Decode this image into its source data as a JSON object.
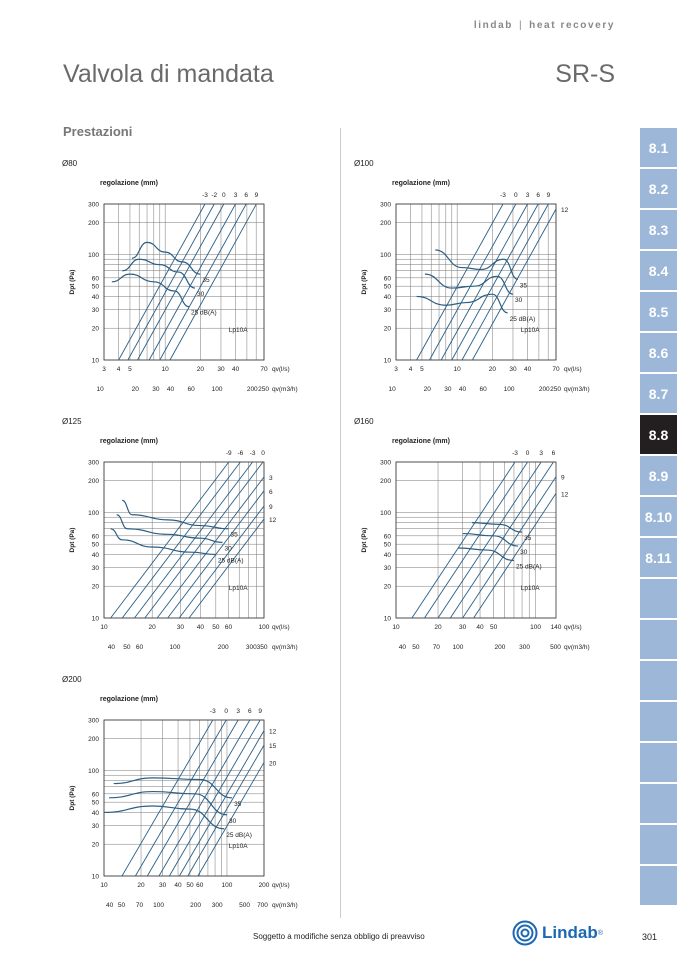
{
  "header": {
    "brand": "lindab",
    "separator": "|",
    "series": "heat recovery"
  },
  "page_title": "Valvola di mandata",
  "model": "SR-S",
  "section_title": "Prestazioni",
  "tabs": [
    "8.1",
    "8.2",
    "8.3",
    "8.4",
    "8.5",
    "8.6",
    "8.7",
    "8.8",
    "8.9",
    "8.10",
    "8.11",
    "",
    "",
    "",
    "",
    "",
    "",
    "",
    ""
  ],
  "active_tab": "8.8",
  "footer": "Soggetto a modifiche senza obbligo di preavviso",
  "logo": "Lindab",
  "logo_mark": "®",
  "page_number": "301",
  "colors": {
    "curve": "#2b5f86",
    "tab": "#9db7d9",
    "tab_active": "#231f20",
    "brand": "#1d68b3"
  },
  "chart_data": [
    {
      "type": "line",
      "title": "Ø80",
      "diameter": "Ø80",
      "regulation_label": "regolazione (mm)",
      "regulation_values": [
        "-3",
        "-2",
        "0",
        "3",
        "6",
        "9"
      ],
      "ylabel": "Dpt (Pa)",
      "xlabel_ls": "qv(l/s)",
      "xlabel_m3h": "qv(m3/h)",
      "ylim": [
        10,
        300
      ],
      "xlim": [
        3,
        70
      ],
      "yticks": [
        10,
        20,
        30,
        40,
        50,
        60,
        100,
        200,
        300
      ],
      "xticks_ls": [
        3,
        4,
        5,
        10,
        20,
        30,
        40,
        70
      ],
      "xticks_m3h": [
        10,
        20,
        30,
        40,
        60,
        100,
        200,
        250
      ],
      "reg_lines_q10": [
        4,
        4.8,
        5.8,
        7.3,
        9,
        11
      ],
      "sound": [
        {
          "label": "35",
          "points": [
            [
              5.2,
              92
            ],
            [
              7,
              130
            ],
            [
              10,
              105
            ],
            [
              14,
              85
            ],
            [
              20,
              65
            ]
          ]
        },
        {
          "label": "30",
          "points": [
            [
              4.3,
              70
            ],
            [
              6,
              90
            ],
            [
              9,
              80
            ],
            [
              13,
              68
            ],
            [
              18,
              48
            ]
          ]
        },
        {
          "label": "25 dB(A)",
          "points": [
            [
              3.5,
              55
            ],
            [
              5,
              65
            ],
            [
              8,
              55
            ],
            [
              12,
              45
            ],
            [
              16,
              32
            ]
          ]
        }
      ],
      "lp_label": "Lp10A"
    },
    {
      "type": "line",
      "title": "Ø100",
      "diameter": "Ø100",
      "regulation_label": "regolazione (mm)",
      "regulation_values": [
        "-3",
        "0",
        "3",
        "6",
        "9",
        "12"
      ],
      "ylabel": "Dpt (Pa)",
      "xlabel_ls": "qv(l/s)",
      "xlabel_m3h": "qv(m3/h)",
      "ylim": [
        10,
        300
      ],
      "xlim": [
        3,
        70
      ],
      "yticks": [
        10,
        20,
        30,
        40,
        50,
        60,
        100,
        200,
        300
      ],
      "xticks_ls": [
        3,
        4,
        5,
        10,
        20,
        30,
        40,
        70
      ],
      "xticks_m3h": [
        10,
        20,
        30,
        40,
        60,
        100,
        200,
        250
      ],
      "reg_lines_q10": [
        4.5,
        5.8,
        7.3,
        9,
        11,
        13.5
      ],
      "sound": [
        {
          "label": "35",
          "points": [
            [
              6.5,
              110
            ],
            [
              11,
              75
            ],
            [
              16,
              72
            ],
            [
              25,
              90
            ],
            [
              33,
              58
            ]
          ]
        },
        {
          "label": "30",
          "points": [
            [
              5.3,
              65
            ],
            [
              9,
              48
            ],
            [
              14,
              50
            ],
            [
              22,
              62
            ],
            [
              30,
              42
            ]
          ]
        },
        {
          "label": "25 dB(A)",
          "points": [
            [
              4.5,
              40
            ],
            [
              8,
              33
            ],
            [
              12,
              35
            ],
            [
              20,
              42
            ],
            [
              27,
              28
            ]
          ]
        }
      ],
      "lp_label": "Lp10A"
    },
    {
      "type": "line",
      "title": "Ø125",
      "diameter": "Ø125",
      "regulation_label": "regolazione (mm)",
      "regulation_values": [
        "-9",
        "-6",
        "-3",
        "0",
        "3",
        "6",
        "9",
        "12"
      ],
      "ylabel": "Dpt (Pa)",
      "xlabel_ls": "qv(l/s)",
      "xlabel_m3h": "qv(m3/h)",
      "ylim": [
        10,
        300
      ],
      "xlim": [
        10,
        100
      ],
      "yticks": [
        10,
        20,
        30,
        40,
        50,
        60,
        100,
        200,
        300
      ],
      "xticks_ls": [
        10,
        20,
        30,
        40,
        50,
        60,
        100
      ],
      "xticks_m3h": [
        40,
        50,
        60,
        100,
        200,
        300,
        350
      ],
      "reg_lines_q10": [
        11,
        13,
        15.5,
        18,
        21.5,
        25,
        29.5,
        34
      ],
      "sound": [
        {
          "label": "35",
          "points": [
            [
              13,
              130
            ],
            [
              15,
              95
            ],
            [
              25,
              85
            ],
            [
              40,
              75
            ],
            [
              60,
              70
            ]
          ]
        },
        {
          "label": "30",
          "points": [
            [
              12,
              95
            ],
            [
              14,
              70
            ],
            [
              25,
              62
            ],
            [
              40,
              57
            ],
            [
              55,
              52
            ]
          ]
        },
        {
          "label": "25 dB(A)",
          "points": [
            [
              11,
              70
            ],
            [
              13,
              55
            ],
            [
              20,
              47
            ],
            [
              35,
              42
            ],
            [
              50,
              40
            ]
          ]
        }
      ],
      "lp_label": "Lp10A"
    },
    {
      "type": "line",
      "title": "Ø160",
      "diameter": "Ø160",
      "regulation_label": "regolazione (mm)",
      "regulation_values": [
        "-3",
        "0",
        "3",
        "6",
        "9",
        "12"
      ],
      "ylabel": "Dpt (Pa)",
      "xlabel_ls": "qv(l/s)",
      "xlabel_m3h": "qv(m3/h)",
      "ylim": [
        10,
        300
      ],
      "xlim": [
        10,
        140
      ],
      "yticks": [
        10,
        20,
        30,
        40,
        50,
        60,
        100,
        200,
        300
      ],
      "xticks_ls": [
        10,
        20,
        30,
        40,
        50,
        100,
        140
      ],
      "xticks_m3h": [
        40,
        50,
        70,
        100,
        200,
        300,
        500
      ],
      "reg_lines_q10": [
        13,
        16,
        20,
        24.5,
        30,
        36
      ],
      "sound": [
        {
          "label": "35",
          "points": [
            [
              35,
              80
            ],
            [
              55,
              77
            ],
            [
              80,
              65
            ]
          ]
        },
        {
          "label": "30",
          "points": [
            [
              30,
              63
            ],
            [
              50,
              60
            ],
            [
              75,
              48
            ]
          ]
        },
        {
          "label": "25 dB(A)",
          "points": [
            [
              28,
              46
            ],
            [
              45,
              44
            ],
            [
              70,
              35
            ]
          ]
        }
      ],
      "lp_label": "Lp10A"
    },
    {
      "type": "line",
      "title": "Ø200",
      "diameter": "Ø200",
      "regulation_label": "regolazione (mm)",
      "regulation_values": [
        "-3",
        "0",
        "3",
        "6",
        "9",
        "12",
        "15",
        "20"
      ],
      "ylabel": "Dpt (Pa)",
      "xlabel_ls": "qv(l/s)",
      "xlabel_m3h": "qv(m3/h)",
      "ylim": [
        10,
        300
      ],
      "xlim": [
        10,
        200
      ],
      "yticks": [
        10,
        20,
        30,
        40,
        50,
        60,
        100,
        200,
        300
      ],
      "xticks_ls": [
        10,
        20,
        30,
        40,
        50,
        60,
        100,
        200
      ],
      "xticks_m3h": [
        40,
        50,
        70,
        100,
        200,
        300,
        500,
        700
      ],
      "reg_lines_q10": [
        14,
        18,
        22.5,
        28,
        34,
        41,
        48,
        58
      ],
      "sound": [
        {
          "label": "35",
          "points": [
            [
              12,
              75
            ],
            [
              25,
              85
            ],
            [
              60,
              82
            ],
            [
              110,
              55
            ]
          ]
        },
        {
          "label": "30",
          "points": [
            [
              11,
              55
            ],
            [
              25,
              63
            ],
            [
              55,
              60
            ],
            [
              100,
              38
            ]
          ]
        },
        {
          "label": "25 dB(A)",
          "points": [
            [
              10,
              40
            ],
            [
              25,
              46
            ],
            [
              50,
              43
            ],
            [
              95,
              28
            ]
          ]
        }
      ],
      "lp_label": "Lp10A"
    }
  ]
}
